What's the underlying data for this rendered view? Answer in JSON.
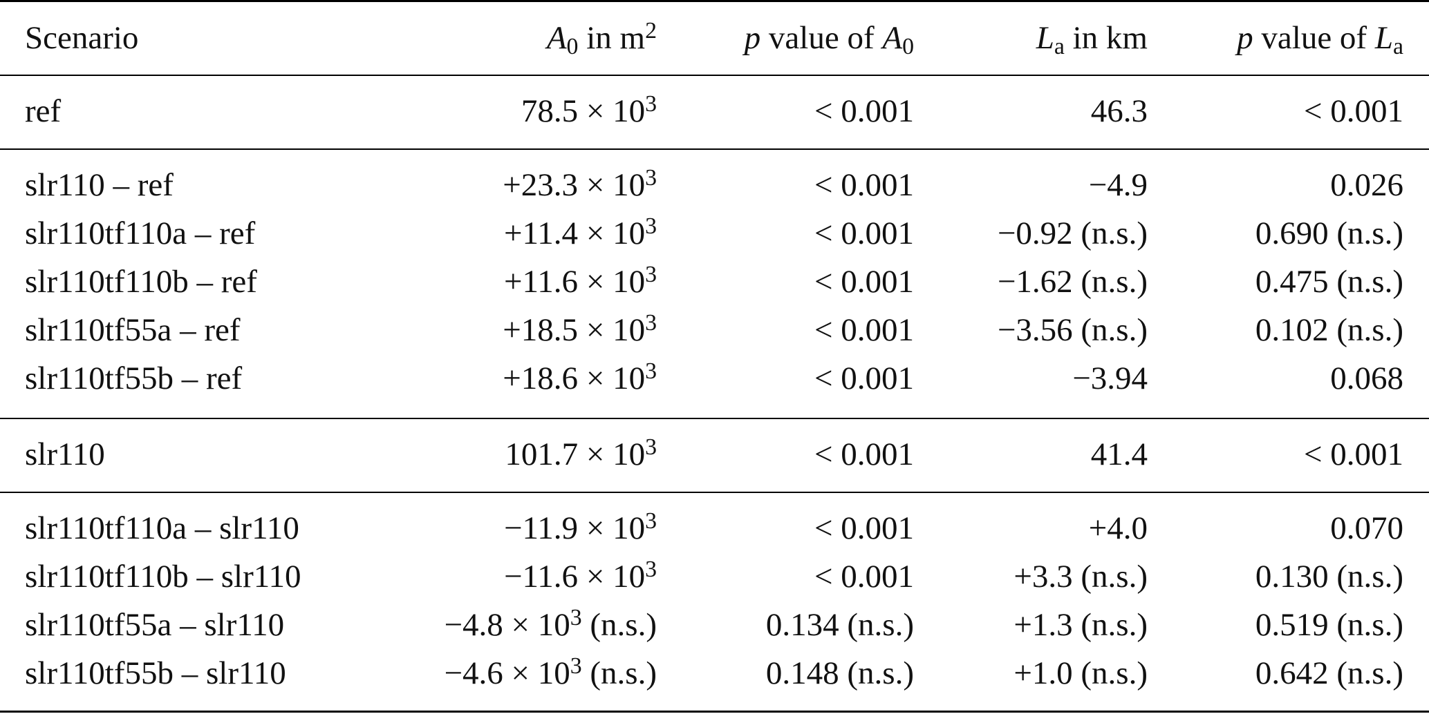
{
  "header": {
    "scenario": "Scenario",
    "a0_sym": "A",
    "a0_sub": "0",
    "a0_unit_text": " in m",
    "a0_unit_exp": "2",
    "p_sym": "p",
    "p_a0_mid": " value of ",
    "a0_sym2": "A",
    "a0_sub2": "0",
    "la_sym": "L",
    "la_sub": "a",
    "la_unit": " in km",
    "p_sym2": "p",
    "p_la_mid": " value of ",
    "la_sym2": "L",
    "la_sub2": "a"
  },
  "times_ten": "× 10",
  "exponent": "3",
  "rows": [
    {
      "scenario": "ref",
      "a0_mantissa": "78.5",
      "a0_suffix": "",
      "p_a0": "< 0.001",
      "la": "46.3",
      "p_la": "< 0.001"
    },
    {
      "scenario": "slr110 – ref",
      "a0_mantissa": "+23.3",
      "a0_suffix": "",
      "p_a0": "< 0.001",
      "la": "−4.9",
      "p_la": "0.026"
    },
    {
      "scenario": "slr110tf110a – ref",
      "a0_mantissa": "+11.4",
      "a0_suffix": "",
      "p_a0": "< 0.001",
      "la": "−0.92 (n.s.)",
      "p_la": "0.690 (n.s.)"
    },
    {
      "scenario": "slr110tf110b – ref",
      "a0_mantissa": "+11.6",
      "a0_suffix": "",
      "p_a0": "< 0.001",
      "la": "−1.62 (n.s.)",
      "p_la": "0.475 (n.s.)"
    },
    {
      "scenario": "slr110tf55a – ref",
      "a0_mantissa": "+18.5",
      "a0_suffix": "",
      "p_a0": "< 0.001",
      "la": "−3.56 (n.s.)",
      "p_la": "0.102 (n.s.)"
    },
    {
      "scenario": "slr110tf55b – ref",
      "a0_mantissa": "+18.6",
      "a0_suffix": "",
      "p_a0": "< 0.001",
      "la": "−3.94",
      "p_la": "0.068"
    },
    {
      "scenario": "slr110",
      "a0_mantissa": "101.7",
      "a0_suffix": "",
      "p_a0": "< 0.001",
      "la": "41.4",
      "p_la": "< 0.001"
    },
    {
      "scenario": "slr110tf110a – slr110",
      "a0_mantissa": "−11.9",
      "a0_suffix": "",
      "p_a0": "< 0.001",
      "la": "+4.0",
      "p_la": "0.070"
    },
    {
      "scenario": "slr110tf110b – slr110",
      "a0_mantissa": "−11.6",
      "a0_suffix": "",
      "p_a0": "< 0.001",
      "la": "+3.3 (n.s.)",
      "p_la": "0.130 (n.s.)"
    },
    {
      "scenario": "slr110tf55a – slr110",
      "a0_mantissa": "−4.8",
      "a0_suffix": " (n.s.)",
      "p_a0": "0.134 (n.s.)",
      "la": "+1.3 (n.s.)",
      "p_la": "0.519 (n.s.)"
    },
    {
      "scenario": "slr110tf55b – slr110",
      "a0_mantissa": "−4.6",
      "a0_suffix": " (n.s.)",
      "p_a0": "0.148 (n.s.)",
      "la": "+1.0 (n.s.)",
      "p_la": "0.642 (n.s.)"
    }
  ]
}
